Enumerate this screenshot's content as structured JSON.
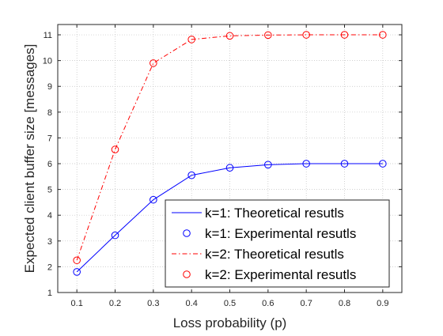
{
  "chart_data": {
    "type": "line",
    "title": "",
    "xlabel": "Loss probability (p)",
    "ylabel": "Expected client buffer size [messages]",
    "xlim": [
      0.05,
      0.95
    ],
    "ylim": [
      1,
      11.4
    ],
    "xticks": [
      0.1,
      0.2,
      0.3,
      0.4,
      0.5,
      0.6,
      0.7,
      0.8,
      0.9
    ],
    "yticks": [
      1,
      2,
      3,
      4,
      5,
      6,
      7,
      8,
      9,
      10,
      11
    ],
    "grid": true,
    "legend_position": "bottom-right",
    "x": [
      0.1,
      0.2,
      0.3,
      0.4,
      0.5,
      0.6,
      0.7,
      0.8,
      0.9
    ],
    "series": [
      {
        "name": "k=1: Theoretical resutls",
        "style": "solid-line",
        "color": "#0000ff",
        "values": [
          1.8,
          3.22,
          4.6,
          5.55,
          5.84,
          5.96,
          6.0,
          6.0,
          6.0
        ]
      },
      {
        "name": "k=1: Experimental resutls",
        "style": "circle-markers",
        "color": "#0000ff",
        "values": [
          1.8,
          3.22,
          4.6,
          5.55,
          5.84,
          5.96,
          6.0,
          6.0,
          6.0
        ]
      },
      {
        "name": "k=2: Theoretical resutls",
        "style": "dash-dot-line",
        "color": "#ff0000",
        "values": [
          2.25,
          6.55,
          9.9,
          10.82,
          10.96,
          10.99,
          11.0,
          11.0,
          11.0
        ]
      },
      {
        "name": "k=2: Experimental resutls",
        "style": "circle-markers",
        "color": "#ff0000",
        "values": [
          2.25,
          6.55,
          9.9,
          10.82,
          10.96,
          10.99,
          11.0,
          11.0,
          11.0
        ]
      }
    ]
  }
}
